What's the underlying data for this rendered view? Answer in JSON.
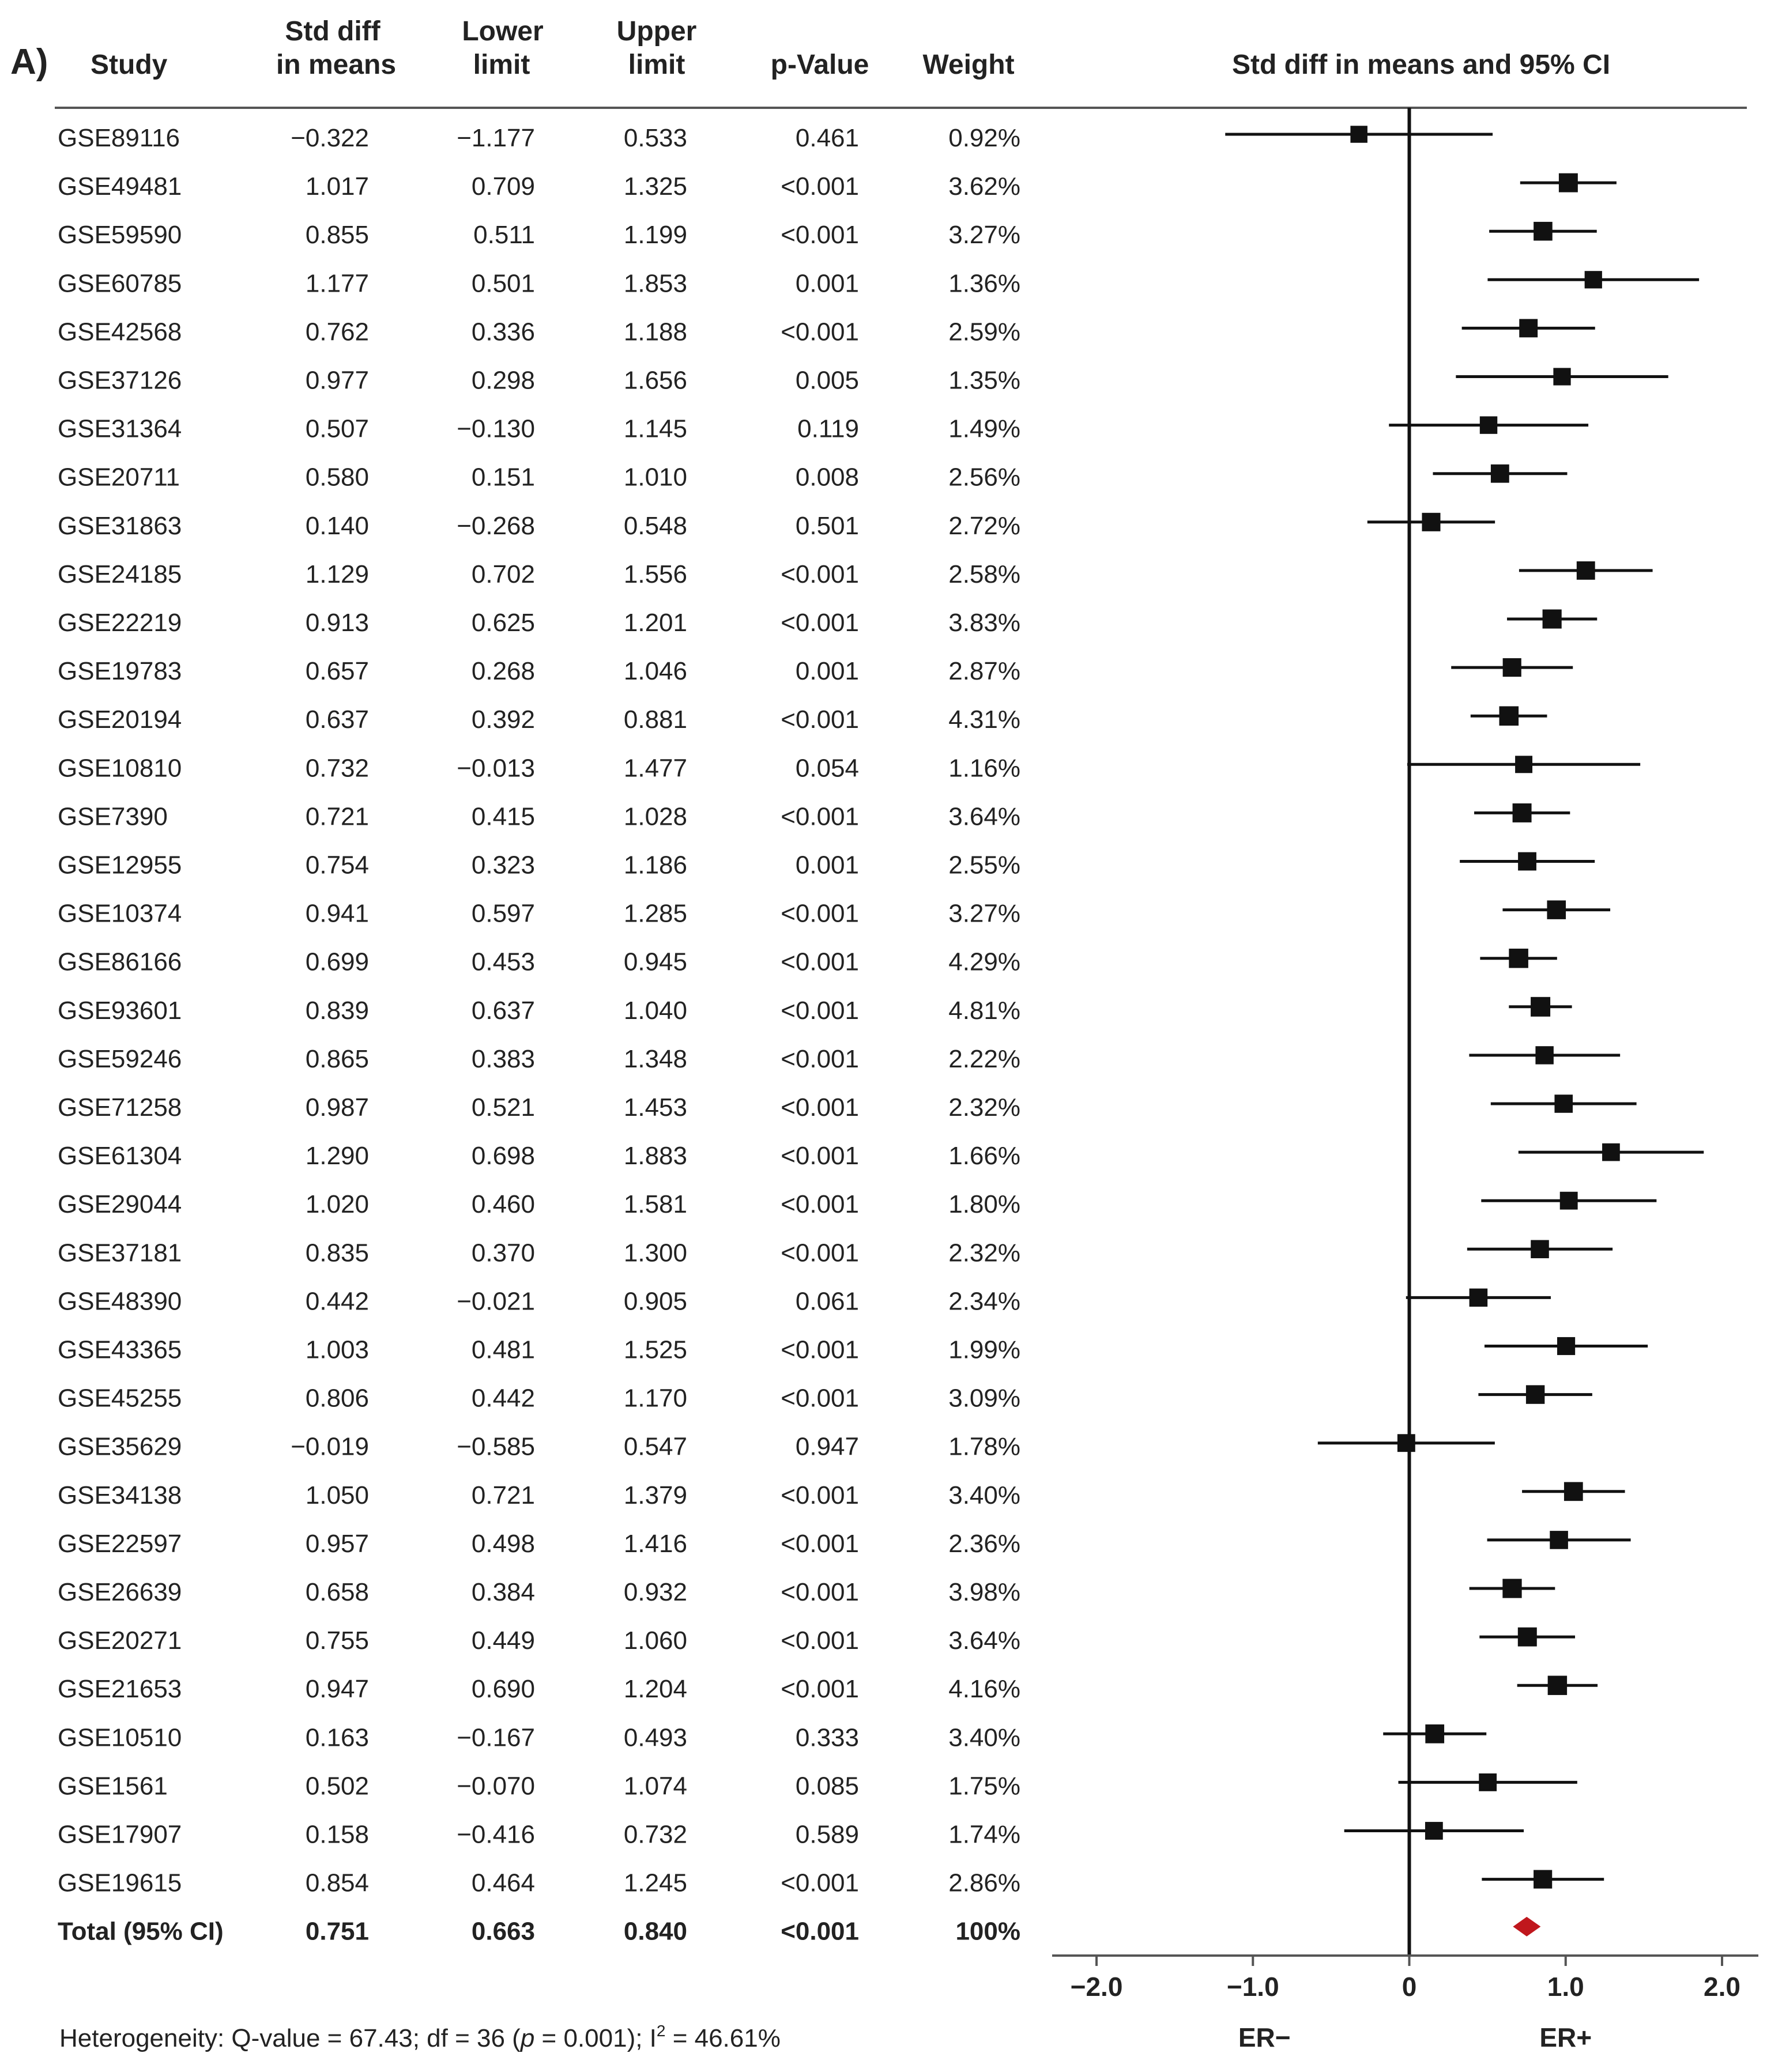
{
  "panel_label": "A)",
  "table": {
    "headers": {
      "study": "Study",
      "smd_line1": "Std diff",
      "smd_line2": "in means",
      "lower_line1": "Lower",
      "lower_line2": "limit",
      "upper_line1": "Upper",
      "upper_line2": "limit",
      "pvalue": "p-Value",
      "weight": "Weight",
      "plot": "Std diff in means and 95% CI"
    },
    "rows": [
      {
        "study": "GSE89116",
        "smd": "−0.322",
        "lower": "−1.177",
        "upper": "0.533",
        "p": "0.461",
        "weight": "0.92%"
      },
      {
        "study": "GSE49481",
        "smd": "1.017",
        "lower": "0.709",
        "upper": "1.325",
        "p": "<0.001",
        "weight": "3.62%"
      },
      {
        "study": "GSE59590",
        "smd": "0.855",
        "lower": "0.511",
        "upper": "1.199",
        "p": "<0.001",
        "weight": "3.27%"
      },
      {
        "study": "GSE60785",
        "smd": "1.177",
        "lower": "0.501",
        "upper": "1.853",
        "p": "0.001",
        "weight": "1.36%"
      },
      {
        "study": "GSE42568",
        "smd": "0.762",
        "lower": "0.336",
        "upper": "1.188",
        "p": "<0.001",
        "weight": "2.59%"
      },
      {
        "study": "GSE37126",
        "smd": "0.977",
        "lower": "0.298",
        "upper": "1.656",
        "p": "0.005",
        "weight": "1.35%"
      },
      {
        "study": "GSE31364",
        "smd": "0.507",
        "lower": "−0.130",
        "upper": "1.145",
        "p": "0.119",
        "weight": "1.49%"
      },
      {
        "study": "GSE20711",
        "smd": "0.580",
        "lower": "0.151",
        "upper": "1.010",
        "p": "0.008",
        "weight": "2.56%"
      },
      {
        "study": "GSE31863",
        "smd": "0.140",
        "lower": "−0.268",
        "upper": "0.548",
        "p": "0.501",
        "weight": "2.72%"
      },
      {
        "study": "GSE24185",
        "smd": "1.129",
        "lower": "0.702",
        "upper": "1.556",
        "p": "<0.001",
        "weight": "2.58%"
      },
      {
        "study": "GSE22219",
        "smd": "0.913",
        "lower": "0.625",
        "upper": "1.201",
        "p": "<0.001",
        "weight": "3.83%"
      },
      {
        "study": "GSE19783",
        "smd": "0.657",
        "lower": "0.268",
        "upper": "1.046",
        "p": "0.001",
        "weight": "2.87%"
      },
      {
        "study": "GSE20194",
        "smd": "0.637",
        "lower": "0.392",
        "upper": "0.881",
        "p": "<0.001",
        "weight": "4.31%"
      },
      {
        "study": "GSE10810",
        "smd": "0.732",
        "lower": "−0.013",
        "upper": "1.477",
        "p": "0.054",
        "weight": "1.16%"
      },
      {
        "study": "GSE7390",
        "smd": "0.721",
        "lower": "0.415",
        "upper": "1.028",
        "p": "<0.001",
        "weight": "3.64%"
      },
      {
        "study": "GSE12955",
        "smd": "0.754",
        "lower": "0.323",
        "upper": "1.186",
        "p": "0.001",
        "weight": "2.55%"
      },
      {
        "study": "GSE10374",
        "smd": "0.941",
        "lower": "0.597",
        "upper": "1.285",
        "p": "<0.001",
        "weight": "3.27%"
      },
      {
        "study": "GSE86166",
        "smd": "0.699",
        "lower": "0.453",
        "upper": "0.945",
        "p": "<0.001",
        "weight": "4.29%"
      },
      {
        "study": "GSE93601",
        "smd": "0.839",
        "lower": "0.637",
        "upper": "1.040",
        "p": "<0.001",
        "weight": "4.81%"
      },
      {
        "study": "GSE59246",
        "smd": "0.865",
        "lower": "0.383",
        "upper": "1.348",
        "p": "<0.001",
        "weight": "2.22%"
      },
      {
        "study": "GSE71258",
        "smd": "0.987",
        "lower": "0.521",
        "upper": "1.453",
        "p": "<0.001",
        "weight": "2.32%"
      },
      {
        "study": "GSE61304",
        "smd": "1.290",
        "lower": "0.698",
        "upper": "1.883",
        "p": "<0.001",
        "weight": "1.66%"
      },
      {
        "study": "GSE29044",
        "smd": "1.020",
        "lower": "0.460",
        "upper": "1.581",
        "p": "<0.001",
        "weight": "1.80%"
      },
      {
        "study": "GSE37181",
        "smd": "0.835",
        "lower": "0.370",
        "upper": "1.300",
        "p": "<0.001",
        "weight": "2.32%"
      },
      {
        "study": "GSE48390",
        "smd": "0.442",
        "lower": "−0.021",
        "upper": "0.905",
        "p": "0.061",
        "weight": "2.34%"
      },
      {
        "study": "GSE43365",
        "smd": "1.003",
        "lower": "0.481",
        "upper": "1.525",
        "p": "<0.001",
        "weight": "1.99%"
      },
      {
        "study": "GSE45255",
        "smd": "0.806",
        "lower": "0.442",
        "upper": "1.170",
        "p": "<0.001",
        "weight": "3.09%"
      },
      {
        "study": "GSE35629",
        "smd": "−0.019",
        "lower": "−0.585",
        "upper": "0.547",
        "p": "0.947",
        "weight": "1.78%"
      },
      {
        "study": "GSE34138",
        "smd": "1.050",
        "lower": "0.721",
        "upper": "1.379",
        "p": "<0.001",
        "weight": "3.40%"
      },
      {
        "study": "GSE22597",
        "smd": "0.957",
        "lower": "0.498",
        "upper": "1.416",
        "p": "<0.001",
        "weight": "2.36%"
      },
      {
        "study": "GSE26639",
        "smd": "0.658",
        "lower": "0.384",
        "upper": "0.932",
        "p": "<0.001",
        "weight": "3.98%"
      },
      {
        "study": "GSE20271",
        "smd": "0.755",
        "lower": "0.449",
        "upper": "1.060",
        "p": "<0.001",
        "weight": "3.64%"
      },
      {
        "study": "GSE21653",
        "smd": "0.947",
        "lower": "0.690",
        "upper": "1.204",
        "p": "<0.001",
        "weight": "4.16%"
      },
      {
        "study": "GSE10510",
        "smd": "0.163",
        "lower": "−0.167",
        "upper": "0.493",
        "p": "0.333",
        "weight": "3.40%"
      },
      {
        "study": "GSE1561",
        "smd": "0.502",
        "lower": "−0.070",
        "upper": "1.074",
        "p": "0.085",
        "weight": "1.75%"
      },
      {
        "study": "GSE17907",
        "smd": "0.158",
        "lower": "−0.416",
        "upper": "0.732",
        "p": "0.589",
        "weight": "1.74%"
      },
      {
        "study": "GSE19615",
        "smd": "0.854",
        "lower": "0.464",
        "upper": "1.245",
        "p": "<0.001",
        "weight": "2.86%"
      }
    ],
    "total": {
      "study": "Total (95% CI)",
      "smd": "0.751",
      "lower": "0.663",
      "upper": "0.840",
      "p": "<0.001",
      "weight": "100%"
    }
  },
  "footer": {
    "heterogeneity_prefix": "Heterogeneity: Q-value = 67.43; df = 36 (",
    "p_symbol": "p",
    "heterogeneity_middle": " = 0.001); I",
    "i2_superscript": "2",
    "heterogeneity_suffix": " = 46.61%"
  },
  "chart_data": {
    "type": "forest",
    "title": "Std diff in means and 95% CI",
    "xlim": [
      -2.0,
      2.0
    ],
    "ticks": [
      {
        "value": -2.0,
        "label": "−2.0"
      },
      {
        "value": -1.0,
        "label": "−1.0"
      },
      {
        "value": 0,
        "label": "0"
      },
      {
        "value": 1.0,
        "label": "1.0"
      },
      {
        "value": 2.0,
        "label": "2.0"
      }
    ],
    "direction_labels": {
      "left": "ER−",
      "right": "ER+"
    },
    "reference_line": 0,
    "studies": [
      {
        "study": "GSE89116",
        "estimate": -0.322,
        "lower": -1.177,
        "upper": 0.533,
        "weight": 0.92
      },
      {
        "study": "GSE49481",
        "estimate": 1.017,
        "lower": 0.709,
        "upper": 1.325,
        "weight": 3.62
      },
      {
        "study": "GSE59590",
        "estimate": 0.855,
        "lower": 0.511,
        "upper": 1.199,
        "weight": 3.27
      },
      {
        "study": "GSE60785",
        "estimate": 1.177,
        "lower": 0.501,
        "upper": 1.853,
        "weight": 1.36
      },
      {
        "study": "GSE42568",
        "estimate": 0.762,
        "lower": 0.336,
        "upper": 1.188,
        "weight": 2.59
      },
      {
        "study": "GSE37126",
        "estimate": 0.977,
        "lower": 0.298,
        "upper": 1.656,
        "weight": 1.35
      },
      {
        "study": "GSE31364",
        "estimate": 0.507,
        "lower": -0.13,
        "upper": 1.145,
        "weight": 1.49
      },
      {
        "study": "GSE20711",
        "estimate": 0.58,
        "lower": 0.151,
        "upper": 1.01,
        "weight": 2.56
      },
      {
        "study": "GSE31863",
        "estimate": 0.14,
        "lower": -0.268,
        "upper": 0.548,
        "weight": 2.72
      },
      {
        "study": "GSE24185",
        "estimate": 1.129,
        "lower": 0.702,
        "upper": 1.556,
        "weight": 2.58
      },
      {
        "study": "GSE22219",
        "estimate": 0.913,
        "lower": 0.625,
        "upper": 1.201,
        "weight": 3.83
      },
      {
        "study": "GSE19783",
        "estimate": 0.657,
        "lower": 0.268,
        "upper": 1.046,
        "weight": 2.87
      },
      {
        "study": "GSE20194",
        "estimate": 0.637,
        "lower": 0.392,
        "upper": 0.881,
        "weight": 4.31
      },
      {
        "study": "GSE10810",
        "estimate": 0.732,
        "lower": -0.013,
        "upper": 1.477,
        "weight": 1.16
      },
      {
        "study": "GSE7390",
        "estimate": 0.721,
        "lower": 0.415,
        "upper": 1.028,
        "weight": 3.64
      },
      {
        "study": "GSE12955",
        "estimate": 0.754,
        "lower": 0.323,
        "upper": 1.186,
        "weight": 2.55
      },
      {
        "study": "GSE10374",
        "estimate": 0.941,
        "lower": 0.597,
        "upper": 1.285,
        "weight": 3.27
      },
      {
        "study": "GSE86166",
        "estimate": 0.699,
        "lower": 0.453,
        "upper": 0.945,
        "weight": 4.29
      },
      {
        "study": "GSE93601",
        "estimate": 0.839,
        "lower": 0.637,
        "upper": 1.04,
        "weight": 4.81
      },
      {
        "study": "GSE59246",
        "estimate": 0.865,
        "lower": 0.383,
        "upper": 1.348,
        "weight": 2.22
      },
      {
        "study": "GSE71258",
        "estimate": 0.987,
        "lower": 0.521,
        "upper": 1.453,
        "weight": 2.32
      },
      {
        "study": "GSE61304",
        "estimate": 1.29,
        "lower": 0.698,
        "upper": 1.883,
        "weight": 1.66
      },
      {
        "study": "GSE29044",
        "estimate": 1.02,
        "lower": 0.46,
        "upper": 1.581,
        "weight": 1.8
      },
      {
        "study": "GSE37181",
        "estimate": 0.835,
        "lower": 0.37,
        "upper": 1.3,
        "weight": 2.32
      },
      {
        "study": "GSE48390",
        "estimate": 0.442,
        "lower": -0.021,
        "upper": 0.905,
        "weight": 2.34
      },
      {
        "study": "GSE43365",
        "estimate": 1.003,
        "lower": 0.481,
        "upper": 1.525,
        "weight": 1.99
      },
      {
        "study": "GSE45255",
        "estimate": 0.806,
        "lower": 0.442,
        "upper": 1.17,
        "weight": 3.09
      },
      {
        "study": "GSE35629",
        "estimate": -0.019,
        "lower": -0.585,
        "upper": 0.547,
        "weight": 1.78
      },
      {
        "study": "GSE34138",
        "estimate": 1.05,
        "lower": 0.721,
        "upper": 1.379,
        "weight": 3.4
      },
      {
        "study": "GSE22597",
        "estimate": 0.957,
        "lower": 0.498,
        "upper": 1.416,
        "weight": 2.36
      },
      {
        "study": "GSE26639",
        "estimate": 0.658,
        "lower": 0.384,
        "upper": 0.932,
        "weight": 3.98
      },
      {
        "study": "GSE20271",
        "estimate": 0.755,
        "lower": 0.449,
        "upper": 1.06,
        "weight": 3.64
      },
      {
        "study": "GSE21653",
        "estimate": 0.947,
        "lower": 0.69,
        "upper": 1.204,
        "weight": 4.16
      },
      {
        "study": "GSE10510",
        "estimate": 0.163,
        "lower": -0.167,
        "upper": 0.493,
        "weight": 3.4
      },
      {
        "study": "GSE1561",
        "estimate": 0.502,
        "lower": -0.07,
        "upper": 1.074,
        "weight": 1.75
      },
      {
        "study": "GSE17907",
        "estimate": 0.158,
        "lower": -0.416,
        "upper": 0.732,
        "weight": 1.74
      },
      {
        "study": "GSE19615",
        "estimate": 0.854,
        "lower": 0.464,
        "upper": 1.245,
        "weight": 2.86
      }
    ],
    "pooled": {
      "estimate": 0.751,
      "lower": 0.663,
      "upper": 0.84
    },
    "colors": {
      "marker": "#111111",
      "pooled": "#c0171d",
      "line": "#111111"
    }
  }
}
